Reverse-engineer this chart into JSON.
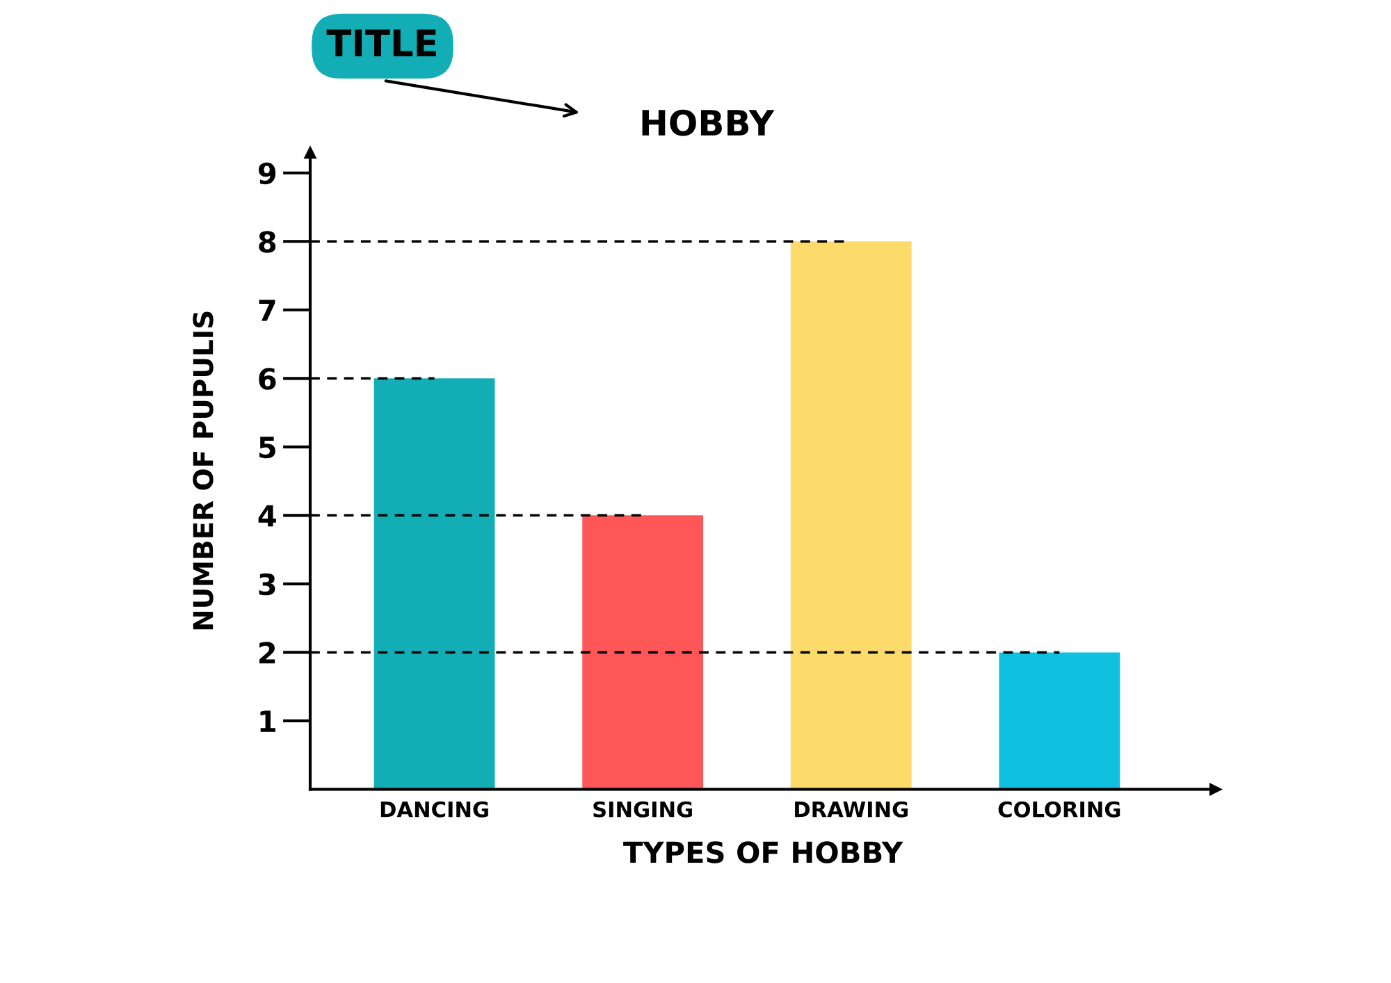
{
  "chart_data": {
    "type": "bar",
    "title": "HOBBY",
    "xlabel": "TYPES OF HOBBY",
    "ylabel": "NUMBER OF PUPULIS",
    "annotations": [
      "TITLE"
    ],
    "categories": [
      "DANCING",
      "SINGING",
      "DRAWING",
      "COLORING"
    ],
    "values": [
      6,
      4,
      8,
      2
    ],
    "colors": [
      "#13aeb5",
      "#ff5757",
      "#fcdb6a",
      "#0fc0df"
    ],
    "ylim": [
      0,
      9.3
    ],
    "yticks": [
      1,
      2,
      3,
      4,
      5,
      6,
      7,
      8,
      9
    ],
    "ref_lines": [
      {
        "axis": "y",
        "value": 8,
        "line_style": "dashed",
        "color": "#000000"
      },
      {
        "axis": "y",
        "value": 6,
        "line_style": "dashed",
        "color": "#000000"
      },
      {
        "axis": "y",
        "value": 4,
        "line_style": "dashed",
        "color": "#000000"
      },
      {
        "axis": "y",
        "value": 2,
        "line_style": "dashed",
        "color": "#000000"
      }
    ],
    "grid": false,
    "legend": false
  }
}
